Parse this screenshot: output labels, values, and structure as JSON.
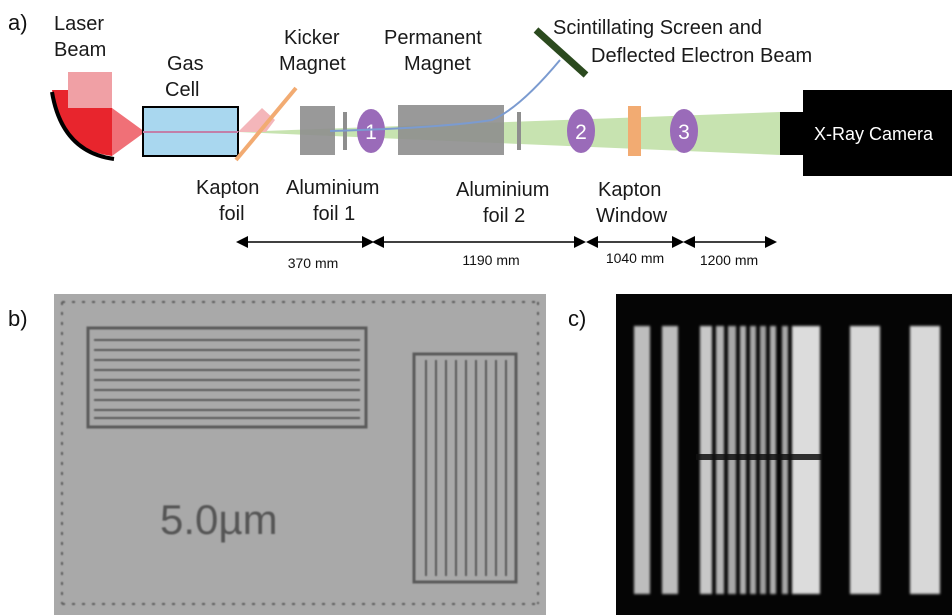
{
  "panels": {
    "a": "a)",
    "b": "b)",
    "c": "c)"
  },
  "labels": {
    "laser_beam_1": "Laser",
    "laser_beam_2": "Beam",
    "gas_cell_1": "Gas",
    "gas_cell_2": "Cell",
    "kicker_1": "Kicker",
    "kicker_2": "Magnet",
    "permanent_1": "Permanent",
    "permanent_2": "Magnet",
    "screen_1": "Scintillating Screen and",
    "screen_2": "Deflected Electron Beam",
    "xray_camera": "X-Ray Camera",
    "kapton_foil_1": "Kapton",
    "kapton_foil_2": "foil",
    "al_foil1_1": "Aluminium",
    "al_foil1_2": "foil 1",
    "al_foil2_1": "Aluminium",
    "al_foil2_2": "foil 2",
    "kapton_window_1": "Kapton",
    "kapton_window_2": "Window"
  },
  "markers": [
    "1",
    "2",
    "3"
  ],
  "distances": [
    "370 mm",
    "1190 mm",
    "1040 mm",
    "1200 mm"
  ],
  "resolution_target_label": "5.0µm",
  "colors": {
    "laser": "#e8252d",
    "laser_light": "#f0a0a5",
    "gas_cell": "#a9d7ef",
    "kapton": "#f2ab72",
    "magnet": "#8e8e8e",
    "marker": "#9a6bb9",
    "xray_beam": "#c7e3b0",
    "screen": "#2b4a1e",
    "electron_path": "#7b9bd0",
    "camera": "#000000"
  }
}
